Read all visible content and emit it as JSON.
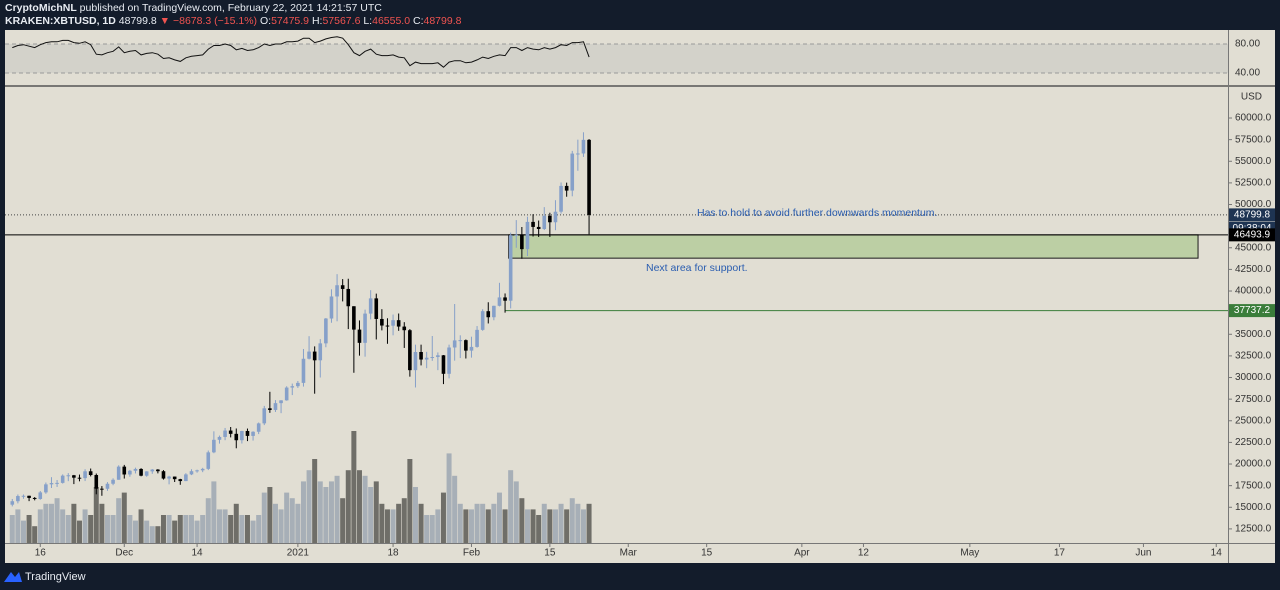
{
  "header": {
    "author": "CryptoMichNL",
    "published": "published on TradingView.com, February 22, 2021 14:21:57 UTC",
    "symbol": "KRAKEN:XBTUSD, 1D",
    "last": "48799.8",
    "arrow": "▼",
    "change": "−8678.3 (−15.1%)",
    "ohlc": [
      {
        "key": "O:",
        "value": "57475.9"
      },
      {
        "key": "H:",
        "value": "57567.6"
      },
      {
        "key": "L:",
        "value": "46555.0"
      },
      {
        "key": "C:",
        "value": "48799.8"
      }
    ]
  },
  "footer": {
    "brand": "TradingView"
  },
  "chart_data": [
    {
      "type": "candlestick",
      "open": [
        15300,
        15700,
        16300,
        16330,
        16080,
        15960,
        16720,
        17650,
        17800,
        17820,
        18660,
        18700,
        18420,
        18370,
        19160,
        18730,
        17150,
        17140,
        17720,
        18180,
        19700,
        18790,
        19220,
        19430,
        18650,
        19150,
        19360,
        19170,
        18320,
        18550,
        18250,
        18030,
        18800,
        19170,
        19270,
        19440,
        21350,
        22800,
        23130,
        23870,
        23490,
        22750,
        23820,
        23250,
        23730,
        24700,
        26440,
        26250,
        27040,
        27360,
        28840,
        29000,
        29380,
        32170,
        33000,
        31990,
        33950,
        36820,
        39370,
        40670,
        40240,
        38240,
        35540,
        34010,
        37390,
        39150,
        36770,
        36010,
        35990,
        36630,
        35890,
        35470,
        30850,
        32950,
        32080,
        32290,
        32370,
        32570,
        30430,
        33470,
        34290,
        34320,
        33110,
        33540,
        35510,
        37670,
        36970,
        38290,
        39260,
        38880,
        46450,
        46500,
        44840,
        47990,
        47410,
        47170,
        48700,
        47950,
        49170,
        52150,
        51610,
        55890,
        55900,
        57475.9
      ],
      "high": [
        15960,
        16480,
        16480,
        16340,
        16180,
        16880,
        17860,
        18480,
        18150,
        18800,
        18950,
        18740,
        18780,
        19400,
        19480,
        18900,
        17450,
        17910,
        18350,
        19850,
        19900,
        19320,
        19580,
        19520,
        19170,
        19420,
        19410,
        19300,
        18640,
        18560,
        18290,
        18940,
        19400,
        19350,
        19560,
        21560,
        23780,
        23290,
        24170,
        24280,
        24110,
        23840,
        24100,
        23790,
        24800,
        26720,
        28350,
        27390,
        27380,
        28990,
        29300,
        29600,
        33300,
        34780,
        33600,
        34440,
        36880,
        40200,
        41950,
        41380,
        41420,
        38240,
        36600,
        37850,
        40100,
        39700,
        37900,
        36850,
        37280,
        37400,
        36400,
        35600,
        33800,
        33800,
        32970,
        34800,
        32900,
        32600,
        33800,
        38500,
        34880,
        34400,
        34720,
        35950,
        37900,
        38700,
        38300,
        40950,
        39720,
        46750,
        48200,
        47400,
        48600,
        48880,
        48150,
        49700,
        49050,
        50500,
        52550,
        52530,
        56200,
        57500,
        58350,
        57567.6
      ],
      "low": [
        15100,
        15450,
        15980,
        15710,
        15800,
        15870,
        16560,
        17230,
        17350,
        17740,
        18020,
        17680,
        18000,
        18030,
        18570,
        16500,
        16330,
        16900,
        17550,
        18180,
        18320,
        18530,
        18910,
        18580,
        18530,
        18870,
        18920,
        18200,
        17650,
        17920,
        17600,
        18020,
        18720,
        19000,
        19060,
        19300,
        21250,
        22360,
        22750,
        23080,
        21820,
        22370,
        22650,
        22710,
        23460,
        24500,
        25920,
        26020,
        25880,
        27320,
        27970,
        28800,
        28950,
        32090,
        28130,
        30000,
        33500,
        36330,
        36500,
        38800,
        35600,
        30550,
        32530,
        32410,
        36720,
        34400,
        35450,
        33900,
        34880,
        35400,
        33420,
        30100,
        28850,
        31400,
        31080,
        31930,
        30850,
        29240,
        29900,
        31950,
        32250,
        32200,
        32300,
        33450,
        35400,
        36250,
        36620,
        38220,
        37500,
        37990,
        45000,
        43730,
        44050,
        46300,
        46250,
        47050,
        46250,
        47030,
        48950,
        50900,
        50950,
        53900,
        55500,
        46555.0
      ],
      "close": [
        15700,
        16300,
        16330,
        16080,
        15960,
        16720,
        17650,
        17800,
        17820,
        18660,
        18700,
        18420,
        18370,
        19160,
        18730,
        17150,
        17140,
        17720,
        18180,
        19700,
        18790,
        19220,
        19430,
        18650,
        19150,
        19360,
        19170,
        18320,
        18550,
        18250,
        18030,
        18800,
        19170,
        19270,
        19440,
        21350,
        22800,
        23130,
        23870,
        23490,
        22750,
        23820,
        23250,
        23730,
        24700,
        26440,
        26250,
        27040,
        27360,
        28840,
        29000,
        29380,
        32170,
        33000,
        31990,
        33950,
        36820,
        39370,
        40670,
        40240,
        38240,
        35540,
        34010,
        37390,
        39150,
        36770,
        36010,
        35990,
        36630,
        35890,
        35470,
        30850,
        32950,
        32080,
        32290,
        32370,
        32570,
        30430,
        33470,
        34290,
        34320,
        33110,
        33540,
        35510,
        37670,
        36970,
        38290,
        39260,
        38880,
        46450,
        46500,
        44840,
        47990,
        47410,
        47170,
        48700,
        47950,
        49170,
        52150,
        51610,
        55890,
        55900,
        57475.9,
        48799.8
      ],
      "volume": [
        5,
        6,
        4,
        5,
        3,
        6,
        7,
        7,
        8,
        6,
        5,
        7,
        4,
        6,
        5,
        10,
        7,
        5,
        5,
        8,
        9,
        5,
        4,
        6,
        4,
        3,
        3,
        5,
        5,
        4,
        5,
        5,
        5,
        4,
        5,
        8,
        11,
        6,
        6,
        5,
        7,
        5,
        5,
        4,
        5,
        9,
        10,
        7,
        6,
        9,
        8,
        7,
        11,
        13,
        15,
        11,
        10,
        11,
        12,
        8,
        13,
        20,
        13,
        12,
        10,
        11,
        7,
        6,
        6,
        7,
        8,
        15,
        10,
        7,
        5,
        5,
        6,
        9,
        16,
        12,
        7,
        6,
        6,
        7,
        7,
        6,
        7,
        9,
        6,
        13,
        11,
        8,
        6,
        6,
        5,
        7,
        6,
        6,
        7,
        6,
        8,
        7,
        6,
        7
      ],
      "volume_lim": [
        0,
        25
      ],
      "colors": {
        "up": "#86a0c9",
        "down": "#000000",
        "volume_up": "#a7afb7",
        "volume_down": "#6f6e68",
        "zone": "#bccfa4",
        "target": "#3a7d3a",
        "support": "#000000",
        "last": "#1e3452"
      },
      "ylim": [
        10870,
        63470
      ],
      "yticks": [
        {
          "value": 12500,
          "label": "12500.0"
        },
        {
          "value": 15000,
          "label": "15000.0"
        },
        {
          "value": 17500,
          "label": "17500.0"
        },
        {
          "value": 20000,
          "label": "20000.0"
        },
        {
          "value": 22500,
          "label": "22500.0"
        },
        {
          "value": 25000,
          "label": "25000.0"
        },
        {
          "value": 27500,
          "label": "27500.0"
        },
        {
          "value": 30000,
          "label": "30000.0"
        },
        {
          "value": 32500,
          "label": "32500.0"
        },
        {
          "value": 35000,
          "label": "35000.0"
        },
        {
          "value": 37500,
          "label": "37500.0"
        },
        {
          "value": 40000,
          "label": "40000.0"
        },
        {
          "value": 42500,
          "label": "42500.0"
        },
        {
          "value": 45000,
          "label": "45000.0"
        },
        {
          "value": 47500,
          "label": "47500.0"
        },
        {
          "value": 50000,
          "label": "50000.0"
        },
        {
          "value": 52500,
          "label": "52500.0"
        },
        {
          "value": 55000,
          "label": "55000.0"
        },
        {
          "value": 57500,
          "label": "57500.0"
        },
        {
          "value": 60000,
          "label": "60000.0"
        }
      ],
      "axis_label": "USD",
      "xlim": [
        -1.3,
        217.1
      ],
      "xticks": [
        {
          "value": 5,
          "label": "16"
        },
        {
          "value": 20,
          "label": "Dec"
        },
        {
          "value": 33,
          "label": "14"
        },
        {
          "value": 51,
          "label": "2021"
        },
        {
          "value": 68,
          "label": "18"
        },
        {
          "value": 82,
          "label": "Feb"
        },
        {
          "value": 96,
          "label": "15"
        },
        {
          "value": 110,
          "label": "Mar"
        },
        {
          "value": 124,
          "label": "15"
        },
        {
          "value": 141,
          "label": "Apr"
        },
        {
          "value": 152,
          "label": "12"
        },
        {
          "value": 171,
          "label": "May"
        },
        {
          "value": 187,
          "label": "17"
        },
        {
          "value": 202,
          "label": "Jun"
        },
        {
          "value": 215,
          "label": "14"
        }
      ],
      "last_price": 48799.8,
      "countdown": "09:38:04",
      "support": 46493.9,
      "target": 37737.2,
      "target_start": 88,
      "zone": {
        "from": 43800,
        "to": 46493.9,
        "start": 89,
        "end": 211.75
      },
      "annotations": [
        "Has to hold to avoid further downwards momentum.",
        "Next area for support."
      ]
    },
    {
      "type": "line",
      "color": "#111111",
      "values": [
        75,
        78,
        79,
        77,
        75,
        79,
        82,
        83,
        83,
        85,
        85,
        82,
        81,
        83,
        79,
        66,
        65,
        68,
        70,
        76,
        68,
        70,
        71,
        65,
        67,
        68,
        66,
        60,
        61,
        58,
        56,
        61,
        63,
        64,
        65,
        73,
        78,
        78,
        80,
        78,
        72,
        74,
        71,
        72,
        75,
        80,
        78,
        80,
        80,
        83,
        83,
        84,
        88,
        88,
        82,
        84,
        87,
        89,
        90,
        88,
        79,
        68,
        64,
        70,
        73,
        66,
        64,
        64,
        65,
        62,
        61,
        50,
        55,
        53,
        53,
        53,
        54,
        48,
        55,
        57,
        57,
        54,
        55,
        58,
        62,
        60,
        63,
        65,
        64,
        75,
        75,
        71,
        75,
        73,
        72,
        75,
        73,
        75,
        79,
        78,
        82,
        82,
        83,
        62
      ],
      "ylim": [
        24.8,
        95.2
      ],
      "yticks": [
        {
          "value": 80,
          "label": "80.00"
        },
        {
          "value": 40,
          "label": "40.00"
        }
      ]
    }
  ]
}
